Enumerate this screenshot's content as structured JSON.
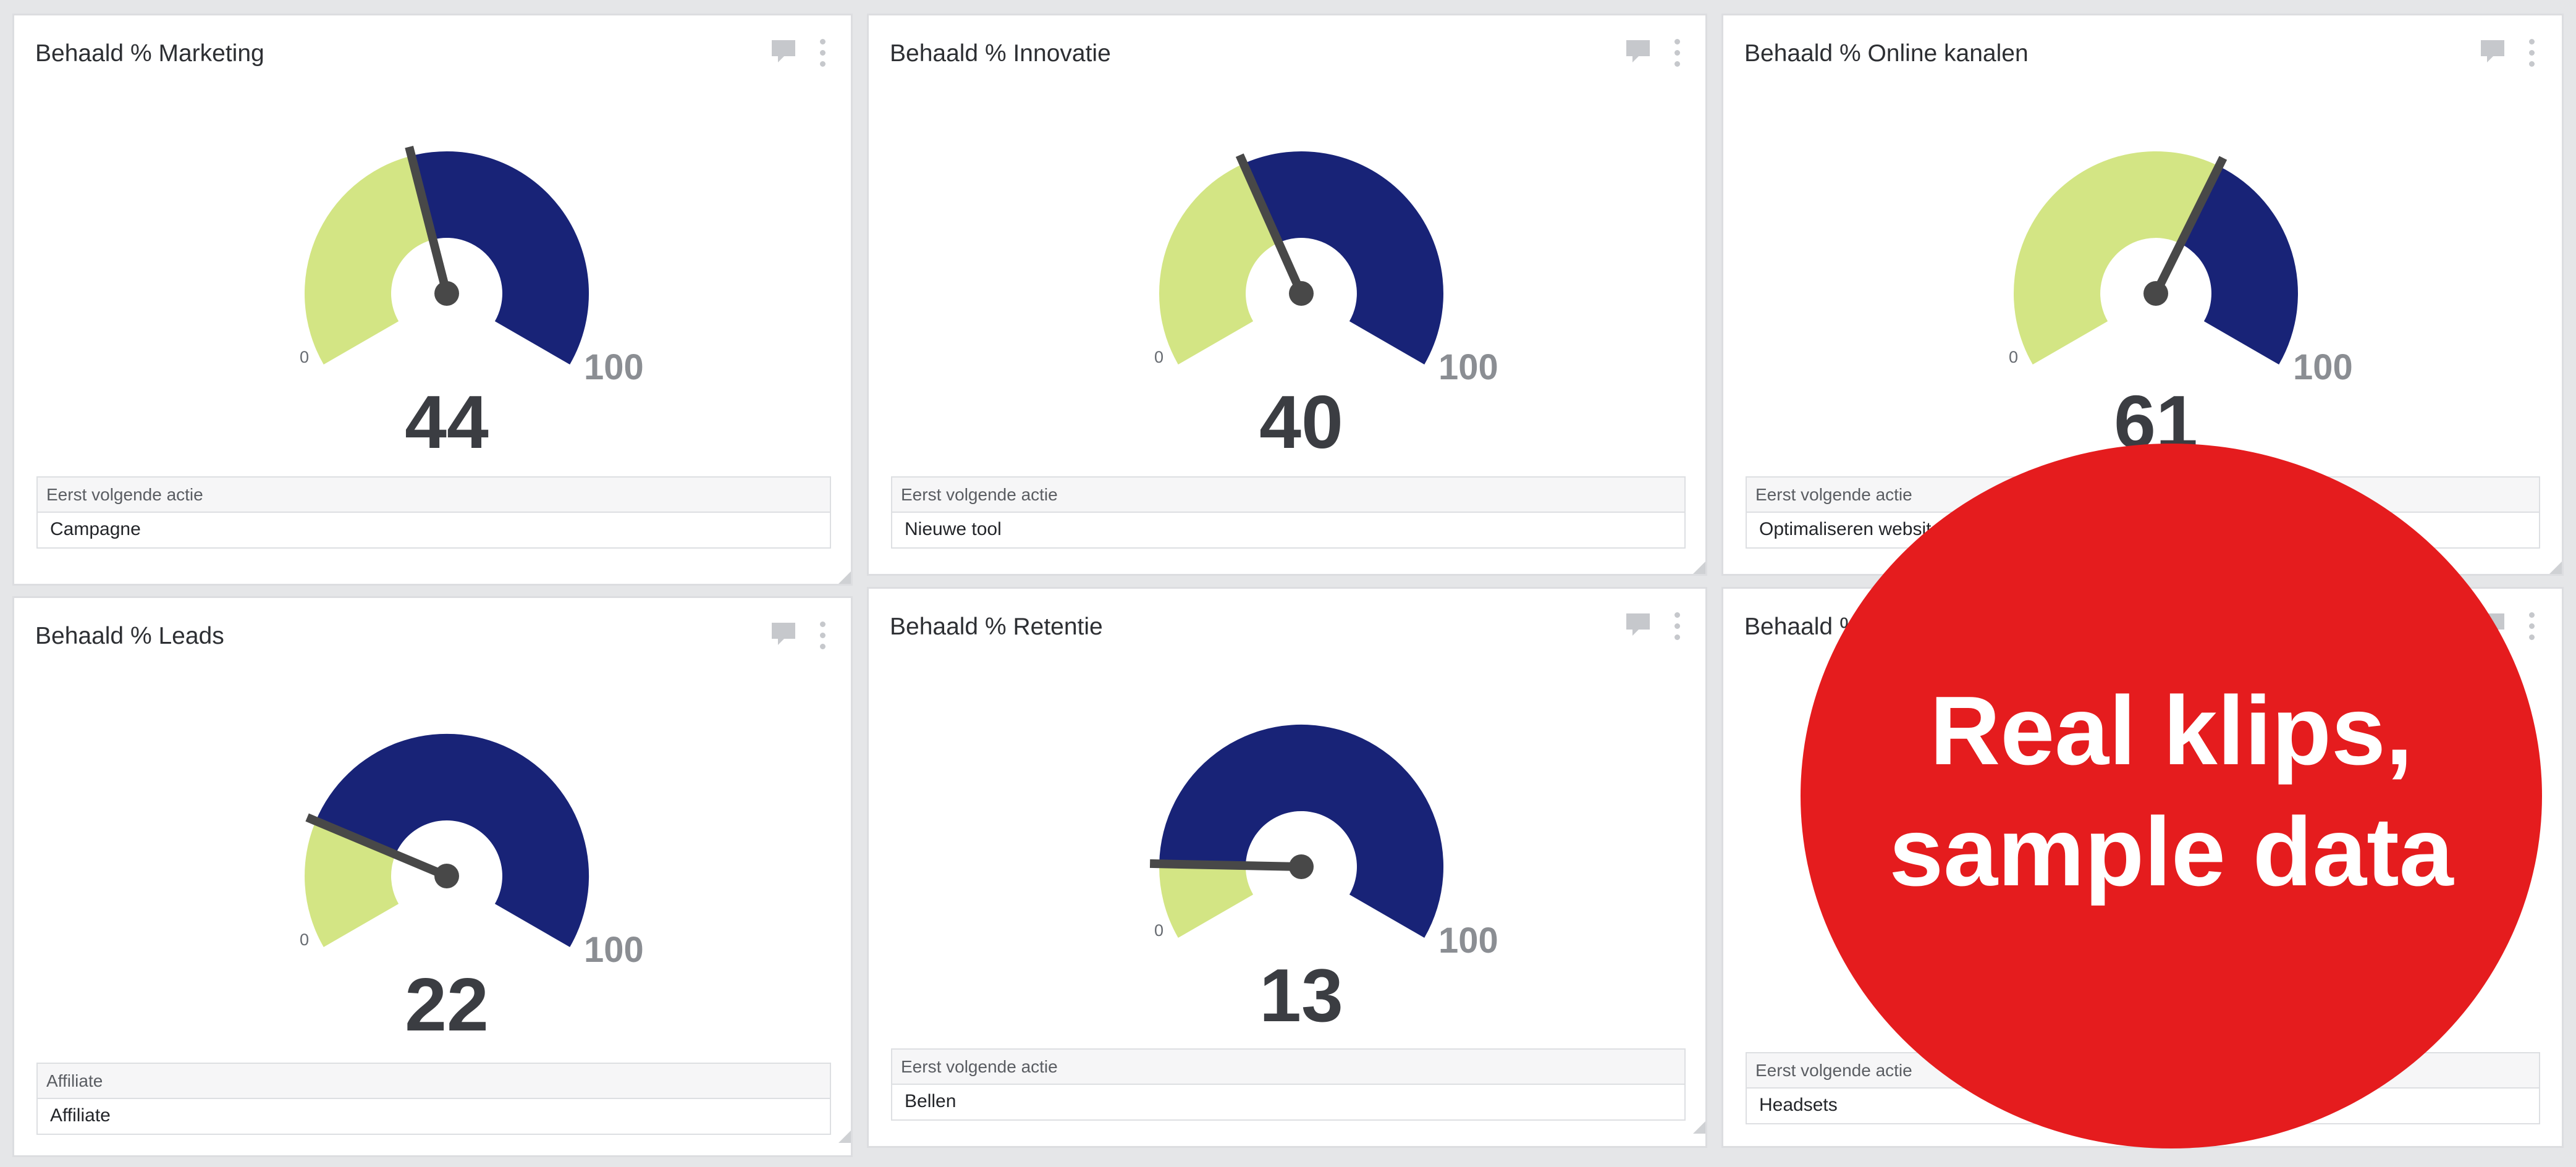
{
  "colors": {
    "achieved": "#182377",
    "remaining": "#d3e584",
    "needle": "#484848",
    "badge": "#e51c1e"
  },
  "icons": [
    "comment-icon",
    "kebab-menu-icon",
    "resize-handle-icon"
  ],
  "panels": [
    {
      "title": "Behaald % Marketing",
      "value": 44,
      "min_label": "0",
      "max_label": "100",
      "actie_label": "Eerst volgende actie",
      "actie_value": "Campagne"
    },
    {
      "title": "Behaald % Innovatie",
      "value": 40,
      "min_label": "0",
      "max_label": "100",
      "actie_label": "Eerst volgende actie",
      "actie_value": "Nieuwe tool"
    },
    {
      "title": "Behaald % Online kanalen",
      "value": 61,
      "min_label": "0",
      "max_label": "100",
      "actie_label": "Eerst volgende actie",
      "actie_value": "Optimaliseren websit"
    },
    {
      "title": "Behaald % Leads",
      "value": 22,
      "min_label": "0",
      "max_label": "100",
      "actie_label": "Affiliate",
      "actie_value": "Affiliate"
    },
    {
      "title": "Behaald % Retentie",
      "value": 13,
      "min_label": "0",
      "max_label": "100",
      "actie_label": "Eerst volgende actie",
      "actie_value": "Bellen"
    },
    {
      "title": "Behaald %",
      "value": null,
      "min_label": "",
      "max_label": "",
      "actie_label": "Eerst volgende actie",
      "actie_value": "Headsets"
    }
  ],
  "badge": {
    "line1": "Real klips,",
    "line2": "sample data"
  }
}
